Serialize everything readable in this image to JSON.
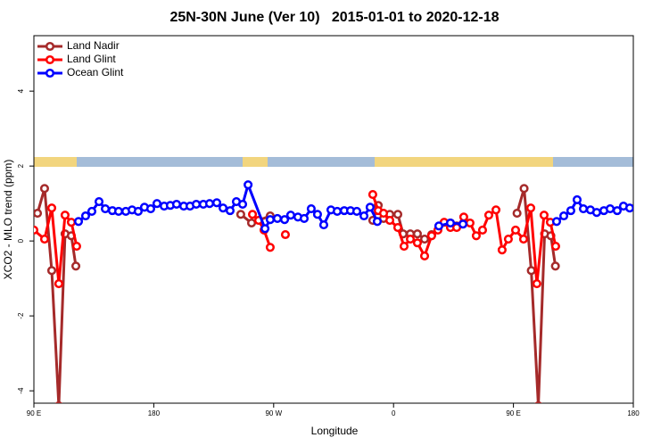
{
  "chart_data": {
    "type": "line",
    "title": "25N-30N June (Ver 10)   2015-01-01 to 2020-12-18",
    "x_label": "Longitude",
    "y_label": "XCO2 - MLO trend (ppm)",
    "xlim": [
      90,
      540
    ],
    "ylim": [
      -4.33,
      5.48
    ],
    "xticks": [
      {
        "value": 90,
        "label": "90 E"
      },
      180,
      {
        "value": 270,
        "label": "90 W"
      },
      0,
      {
        "value": 450,
        "label": "90 E"
      },
      {
        "value": 540,
        "label": "180"
      }
    ],
    "yticks": [
      -4,
      -2,
      0,
      2,
      4
    ],
    "legend": "top-left",
    "series": [
      {
        "name": "Land Nadir",
        "color": "#a52a2a",
        "x": [
          92.7,
          98.0,
          103.4,
          108.7,
          113.4,
          118.1,
          121.5,
          null,
          245.3,
          253.4,
          267.4,
          null,
          344.4,
          348.5,
          352.5,
          357.2,
          363.2,
          367.2,
          372.6,
          377.9,
          383.3,
          388.6,
          null,
          402.7,
          407.4,
          null,
          452.7,
          458.0,
          463.4,
          468.7,
          473.4,
          478.1,
          481.5
        ],
        "values": [
          0.74,
          1.4,
          -0.79,
          -4.4,
          0.19,
          0.14,
          -0.67,
          null,
          0.71,
          0.48,
          0.67,
          null,
          0.55,
          0.95,
          0.6,
          0.71,
          0.71,
          0.19,
          0.19,
          0.19,
          0.05,
          0.17,
          null,
          0.48,
          0.4,
          null,
          0.74,
          1.4,
          -0.79,
          -4.4,
          0.19,
          0.14,
          -0.67
        ]
      },
      {
        "name": "Land Glint",
        "color": "#ff0000",
        "x": [
          90,
          98.0,
          103.4,
          108.7,
          113.4,
          118.1,
          122.1,
          null,
          254.1,
          258.7,
          262.8,
          267.4,
          null,
          278.8,
          null,
          344.4,
          348.5,
          352.5,
          357.2,
          363.2,
          367.9,
          372.6,
          377.9,
          383.3,
          388.6,
          393.3,
          398.0,
          402.7,
          407.4,
          412.7,
          417.4,
          422.1,
          426.8,
          431.5,
          436.9,
          441.5,
          446.2,
          451.6,
          457.6,
          463.0,
          467.6,
          473.0,
          477.7,
          481.7
        ],
        "values": [
          0.29,
          0.05,
          0.88,
          -1.14,
          0.69,
          0.5,
          -0.14,
          null,
          0.71,
          0.55,
          0.29,
          -0.17,
          null,
          0.17,
          null,
          1.24,
          0.81,
          0.74,
          0.55,
          0.36,
          -0.14,
          0.05,
          -0.05,
          -0.4,
          0.14,
          0.29,
          0.5,
          0.36,
          0.36,
          0.64,
          0.48,
          0.14,
          0.29,
          0.69,
          0.83,
          -0.24,
          0.05,
          0.29,
          0.05,
          0.88,
          -1.14,
          0.69,
          0.5,
          -0.14
        ]
      },
      {
        "name": "Ocean Glint",
        "color": "#0000ff",
        "x": [
          123.5,
          128.8,
          133.5,
          138.9,
          143.6,
          148.9,
          153.6,
          159.0,
          163.7,
          168.3,
          173.0,
          177.7,
          182.4,
          187.8,
          192.4,
          197.1,
          202.5,
          207.2,
          211.9,
          217.2,
          221.9,
          227.3,
          232.0,
          237.3,
          242.0,
          246.7,
          250.8,
          263.5,
          267.4,
          272.8,
          278.2,
          282.8,
          288.2,
          292.9,
          298.2,
          302.9,
          307.6,
          313.0,
          317.7,
          323.0,
          327.7,
          332.4,
          337.8,
          342.4,
          347.8,
          null,
          394.0,
          402.7,
          412.1,
          null,
          482.4,
          487.8,
          493.1,
          497.8,
          502.5,
          507.8,
          512.5,
          517.9,
          522.6,
          527.9,
          532.6,
          537.3
        ],
        "values": [
          0.52,
          0.67,
          0.79,
          1.05,
          0.86,
          0.81,
          0.79,
          0.79,
          0.83,
          0.79,
          0.9,
          0.86,
          1.0,
          0.93,
          0.95,
          0.98,
          0.93,
          0.93,
          0.98,
          0.98,
          1.0,
          1.02,
          0.88,
          0.81,
          1.05,
          0.98,
          1.5,
          0.33,
          0.57,
          0.6,
          0.57,
          0.69,
          0.64,
          0.6,
          0.86,
          0.71,
          0.43,
          0.83,
          0.79,
          0.81,
          0.81,
          0.79,
          0.67,
          0.9,
          0.52,
          null,
          0.4,
          0.48,
          0.45,
          null,
          0.52,
          0.67,
          0.81,
          1.1,
          0.86,
          0.83,
          0.76,
          0.81,
          0.86,
          0.81,
          0.93,
          0.88
        ]
      }
    ]
  }
}
